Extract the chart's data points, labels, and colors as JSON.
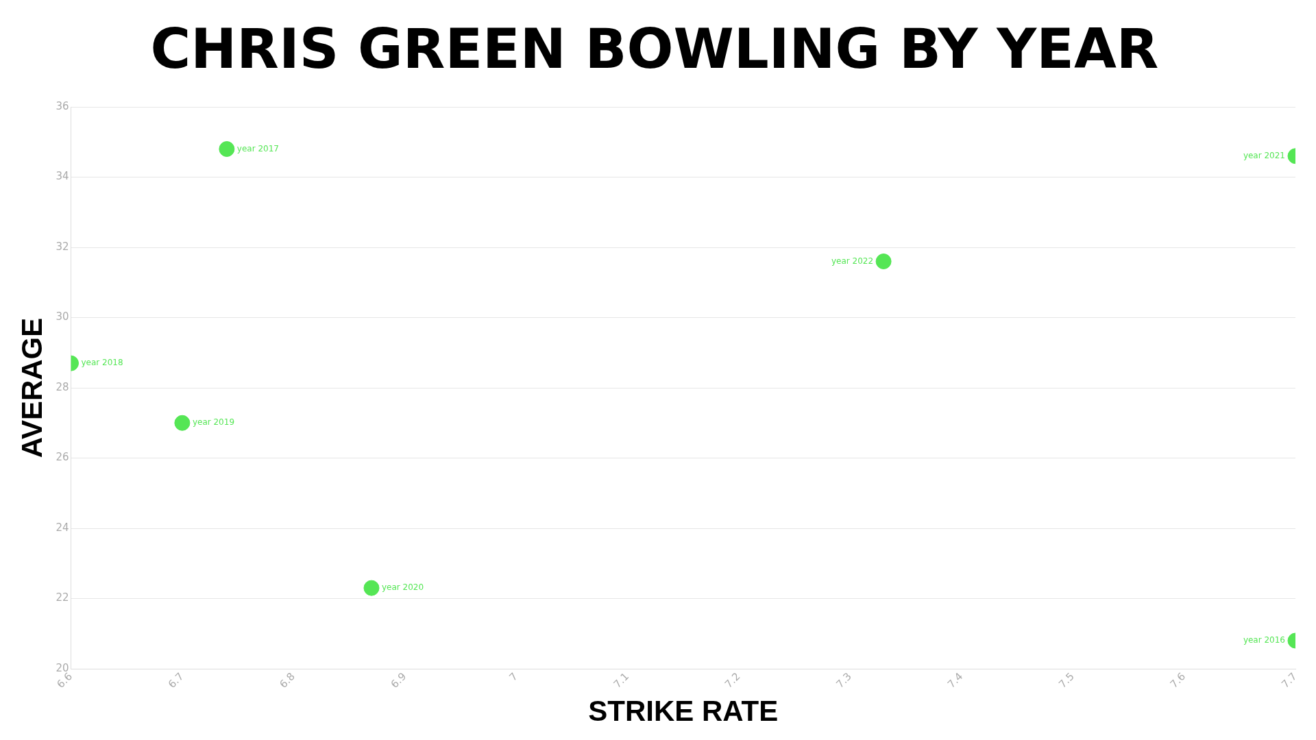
{
  "chart_data": {
    "type": "scatter",
    "title": "CHRIS GREEN BOWLING BY YEAR",
    "xlabel": "STRIKE RATE",
    "ylabel": "AVERAGE",
    "series": [
      {
        "color": "#55e655",
        "x": [
          6.74,
          7.7,
          7.33,
          6.6,
          6.7,
          6.87,
          7.7
        ],
        "values": [
          34.8,
          34.6,
          31.6,
          28.7,
          27.0,
          22.3,
          20.8
        ]
      }
    ],
    "annotations": [
      {
        "text": "year 2017",
        "x": 6.74,
        "y": 34.8
      },
      {
        "text": "year 2021",
        "x": 7.7,
        "y": 34.6
      },
      {
        "text": "year 2022",
        "x": 7.33,
        "y": 31.6
      },
      {
        "text": "year 2018",
        "x": 6.6,
        "y": 28.7
      },
      {
        "text": "year 2019",
        "x": 6.7,
        "y": 27.0
      },
      {
        "text": "year 2020",
        "x": 6.87,
        "y": 22.3
      },
      {
        "text": "year 2016",
        "x": 7.7,
        "y": 20.8
      }
    ],
    "xlim": [
      6.6,
      7.7
    ],
    "xticks": [
      6.6,
      6.7,
      6.8,
      6.9,
      7,
      7.1,
      7.2,
      7.3,
      7.4,
      7.5,
      7.6,
      7.7
    ],
    "ylim": [
      20,
      36
    ],
    "yticks": [
      20,
      22,
      24,
      26,
      28,
      30,
      32,
      34,
      36
    ],
    "grid": "y",
    "legend": false,
    "marker": "circle"
  }
}
